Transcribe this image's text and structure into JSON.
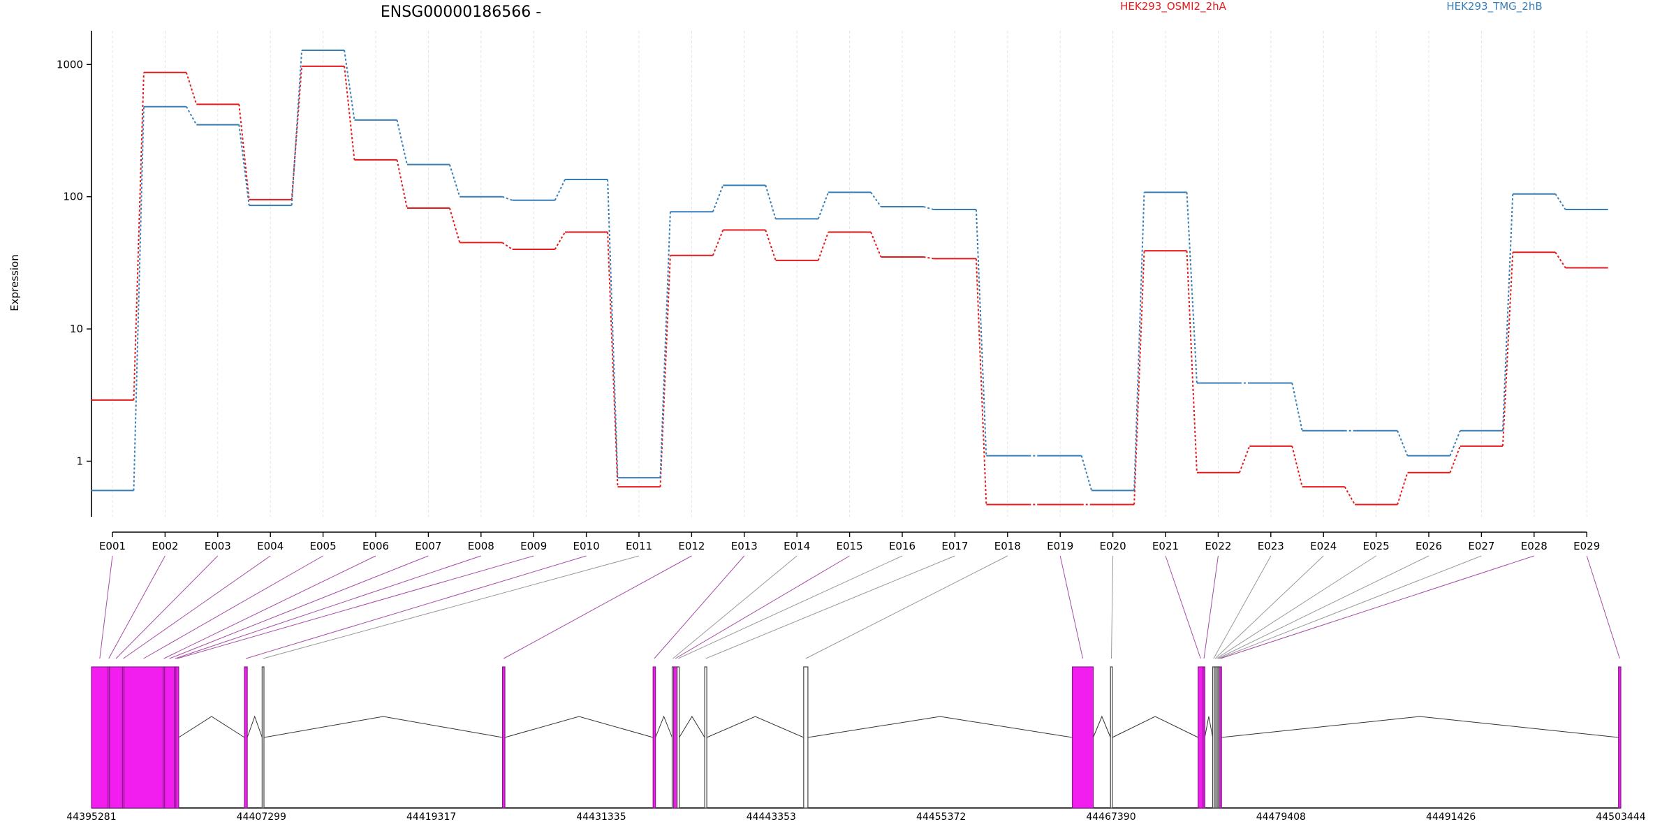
{
  "chart_data": {
    "type": "line",
    "title": "ENSG00000186566 -",
    "ylabel": "Expression",
    "xlabel": "",
    "yscale": "log",
    "ylim": [
      0.38,
      1800
    ],
    "grid": "vertical",
    "legend_position": "top-right",
    "y_ticks": [
      {
        "value": 1,
        "label": "1"
      },
      {
        "value": 10,
        "label": "10"
      },
      {
        "value": 100,
        "label": "100"
      },
      {
        "value": 1000,
        "label": "1000"
      }
    ],
    "categories": [
      "E001",
      "E002",
      "E003",
      "E004",
      "E005",
      "E006",
      "E007",
      "E008",
      "E009",
      "E010",
      "E011",
      "E012",
      "E013",
      "E014",
      "E015",
      "E016",
      "E017",
      "E018",
      "E019",
      "E020",
      "E021",
      "E022",
      "E023",
      "E024",
      "E025",
      "E026",
      "E027",
      "E028",
      "E029"
    ],
    "series": [
      {
        "name": "HEK293_OSMI2_2hA",
        "color": "#e41a1c",
        "values": [
          2.9,
          870,
          500,
          95,
          970,
          190,
          82,
          45,
          40,
          54,
          0.64,
          36,
          56,
          33,
          54,
          35,
          34,
          0.47,
          0.47,
          0.47,
          39,
          0.82,
          1.3,
          0.64,
          0.47,
          0.82,
          1.3,
          38,
          29
        ]
      },
      {
        "name": "HEK293_TMG_2hB",
        "color": "#377eb8",
        "values": [
          0.6,
          480,
          350,
          86,
          1280,
          380,
          175,
          100,
          94,
          135,
          0.75,
          77,
          122,
          68,
          108,
          84,
          80,
          1.1,
          1.1,
          0.6,
          108,
          3.9,
          3.9,
          1.7,
          1.7,
          1.1,
          1.7,
          105,
          80
        ]
      }
    ],
    "gene_model": {
      "coordinates": [
        "44395281",
        "44407299",
        "44419317",
        "44431335",
        "44443353",
        "44455372",
        "44467390",
        "44479408",
        "44491426",
        "44503444"
      ],
      "coord_min": 44395281,
      "coord_max": 44503444,
      "exon_color": "#f21ef0",
      "exons": [
        {
          "id": "E001",
          "start": 44395281,
          "end": 44396450,
          "highlight": true
        },
        {
          "id": "E002",
          "start": 44396450,
          "end": 44396550,
          "highlight": true
        },
        {
          "id": "E003",
          "start": 44396550,
          "end": 44397480,
          "highlight": true
        },
        {
          "id": "E004",
          "start": 44397480,
          "end": 44397580,
          "highlight": true
        },
        {
          "id": "E005",
          "start": 44397580,
          "end": 44400350,
          "highlight": true
        },
        {
          "id": "E006",
          "start": 44400350,
          "end": 44400450,
          "highlight": true
        },
        {
          "id": "E007",
          "start": 44400450,
          "end": 44401150,
          "highlight": true
        },
        {
          "id": "E008",
          "start": 44401150,
          "end": 44401250,
          "highlight": true
        },
        {
          "id": "E009",
          "start": 44401250,
          "end": 44401450,
          "highlight": true
        },
        {
          "id": "E010",
          "start": 44406100,
          "end": 44406300,
          "highlight": true
        },
        {
          "id": "E011",
          "start": 44407350,
          "end": 44407480,
          "highlight": false
        },
        {
          "id": "E012",
          "start": 44424350,
          "end": 44424520,
          "highlight": true
        },
        {
          "id": "E013",
          "start": 44435000,
          "end": 44435170,
          "highlight": true
        },
        {
          "id": "E014",
          "start": 44436350,
          "end": 44436450,
          "highlight": false
        },
        {
          "id": "E015",
          "start": 44436450,
          "end": 44436700,
          "highlight": true
        },
        {
          "id": "E016",
          "start": 44436700,
          "end": 44436850,
          "highlight": false
        },
        {
          "id": "E017",
          "start": 44438650,
          "end": 44438800,
          "highlight": false
        },
        {
          "id": "E018",
          "start": 44445650,
          "end": 44445950,
          "highlight": false
        },
        {
          "id": "E019",
          "start": 44464650,
          "end": 44466130,
          "highlight": true
        },
        {
          "id": "E020",
          "start": 44467350,
          "end": 44467480,
          "highlight": false
        },
        {
          "id": "E021",
          "start": 44473550,
          "end": 44473900,
          "highlight": true
        },
        {
          "id": "E022",
          "start": 44473900,
          "end": 44474020,
          "highlight": true
        },
        {
          "id": "E023",
          "start": 44474580,
          "end": 44474700,
          "highlight": false
        },
        {
          "id": "E024",
          "start": 44474700,
          "end": 44474800,
          "highlight": false
        },
        {
          "id": "E025",
          "start": 44474800,
          "end": 44474900,
          "highlight": false
        },
        {
          "id": "E026",
          "start": 44474900,
          "end": 44474980,
          "highlight": false
        },
        {
          "id": "E027",
          "start": 44474980,
          "end": 44475080,
          "highlight": false
        },
        {
          "id": "E028",
          "start": 44475080,
          "end": 44475180,
          "highlight": true
        },
        {
          "id": "E029",
          "start": 44503280,
          "end": 44503444,
          "highlight": true
        }
      ]
    }
  }
}
